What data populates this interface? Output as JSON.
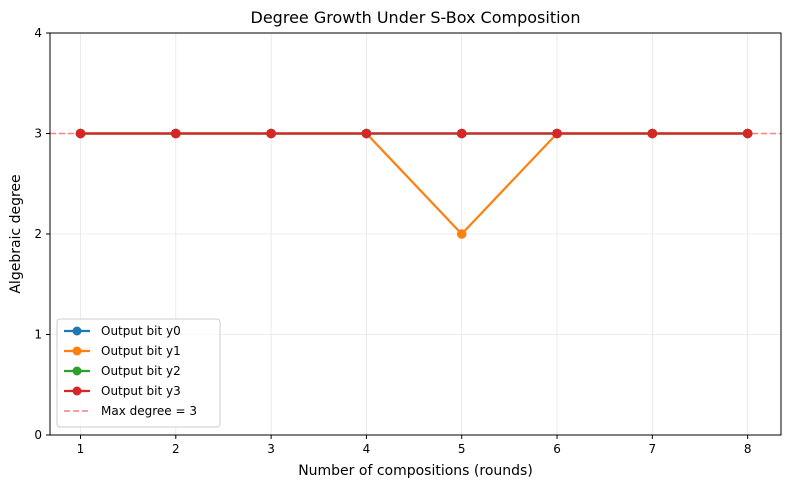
{
  "chart_data": {
    "type": "line",
    "title": "Degree Growth Under S-Box Composition",
    "xlabel": "Number of compositions (rounds)",
    "ylabel": "Algebraic degree",
    "x": [
      1,
      2,
      3,
      4,
      5,
      6,
      7,
      8
    ],
    "xlim": [
      0.68,
      8.35
    ],
    "ylim": [
      0,
      4
    ],
    "xticks": [
      1,
      2,
      3,
      4,
      5,
      6,
      7,
      8
    ],
    "yticks": [
      0,
      1,
      2,
      3,
      4
    ],
    "grid": true,
    "legend_position": "lower-left",
    "series": [
      {
        "name": "Output bit y0",
        "color": "#1f77b4",
        "values": [
          3,
          3,
          3,
          3,
          3,
          3,
          3,
          3
        ]
      },
      {
        "name": "Output bit y1",
        "color": "#ff7f0e",
        "values": [
          3,
          3,
          3,
          3,
          2,
          3,
          3,
          3
        ]
      },
      {
        "name": "Output bit y2",
        "color": "#2ca02c",
        "values": [
          3,
          3,
          3,
          3,
          3,
          3,
          3,
          3
        ]
      },
      {
        "name": "Output bit y3",
        "color": "#d62728",
        "values": [
          3,
          3,
          3,
          3,
          3,
          3,
          3,
          3
        ]
      }
    ],
    "reference_line": {
      "name": "Max degree = 3",
      "y": 3,
      "color": "#ff7f7f",
      "style": "dashed"
    }
  }
}
